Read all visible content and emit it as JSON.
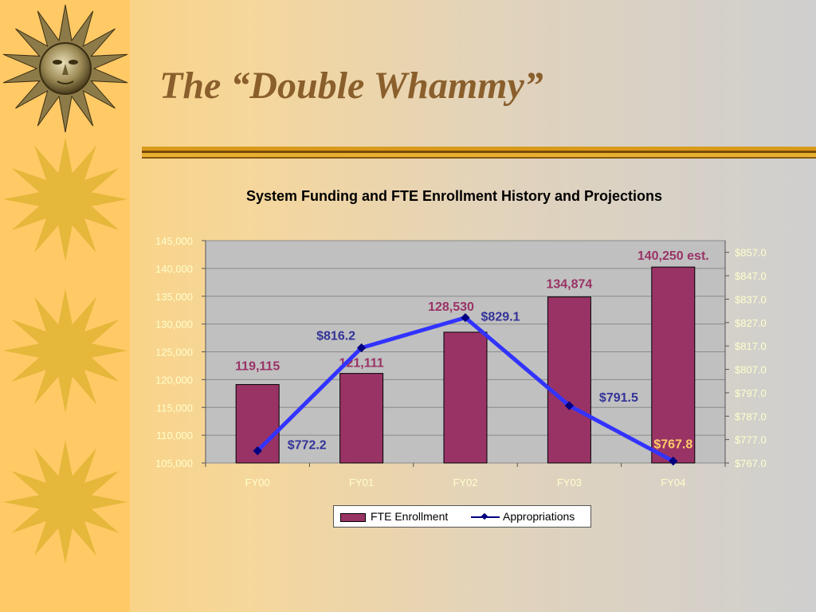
{
  "slide": {
    "title": "The “Double Whammy”",
    "decoration_icons": [
      "sun-face-icon",
      "sun-icon",
      "sun-icon",
      "sun-icon"
    ]
  },
  "colors": {
    "bar": "#993366",
    "line": "#3333ff",
    "line_marker": "#000080",
    "bar_label": "#993366",
    "line_label": "#333399",
    "axis_text": "#ffffcc",
    "highlight_label": "#ffcc66",
    "plot_bg": "#c0c0c0",
    "title_color": "#8a5f2c"
  },
  "chart_data": {
    "type": "bar",
    "title": "System Funding and FTE Enrollment History and Projections",
    "categories": [
      "FY00",
      "FY01",
      "FY02",
      "FY03",
      "FY04"
    ],
    "series": [
      {
        "name": "FTE Enrollment",
        "type": "bar",
        "axis": "left",
        "values": [
          119115,
          121111,
          128530,
          134874,
          140250
        ],
        "labels": [
          "119,115",
          "121,111",
          "128,530",
          "134,874",
          "140,250 est."
        ]
      },
      {
        "name": "Appropriations",
        "type": "line",
        "axis": "right",
        "values": [
          772.2,
          816.2,
          829.1,
          791.5,
          767.8
        ],
        "labels": [
          "$772.2",
          "$816.2",
          "$829.1",
          "$791.5",
          "$767.8"
        ]
      }
    ],
    "y_left": {
      "range": [
        105000,
        145000
      ],
      "ticks": [
        "145,000",
        "140,000",
        "135,000",
        "130,000",
        "125,000",
        "120,000",
        "115,000",
        "110,000",
        "105,000"
      ]
    },
    "y_right": {
      "range": [
        767.0,
        862.0
      ],
      "ticks": [
        "$857.0",
        "$847.0",
        "$837.0",
        "$827.0",
        "$817.0",
        "$807.0",
        "$797.0",
        "$787.0",
        "$777.0",
        "$767.0"
      ]
    },
    "grid": true,
    "legend_position": "bottom"
  }
}
